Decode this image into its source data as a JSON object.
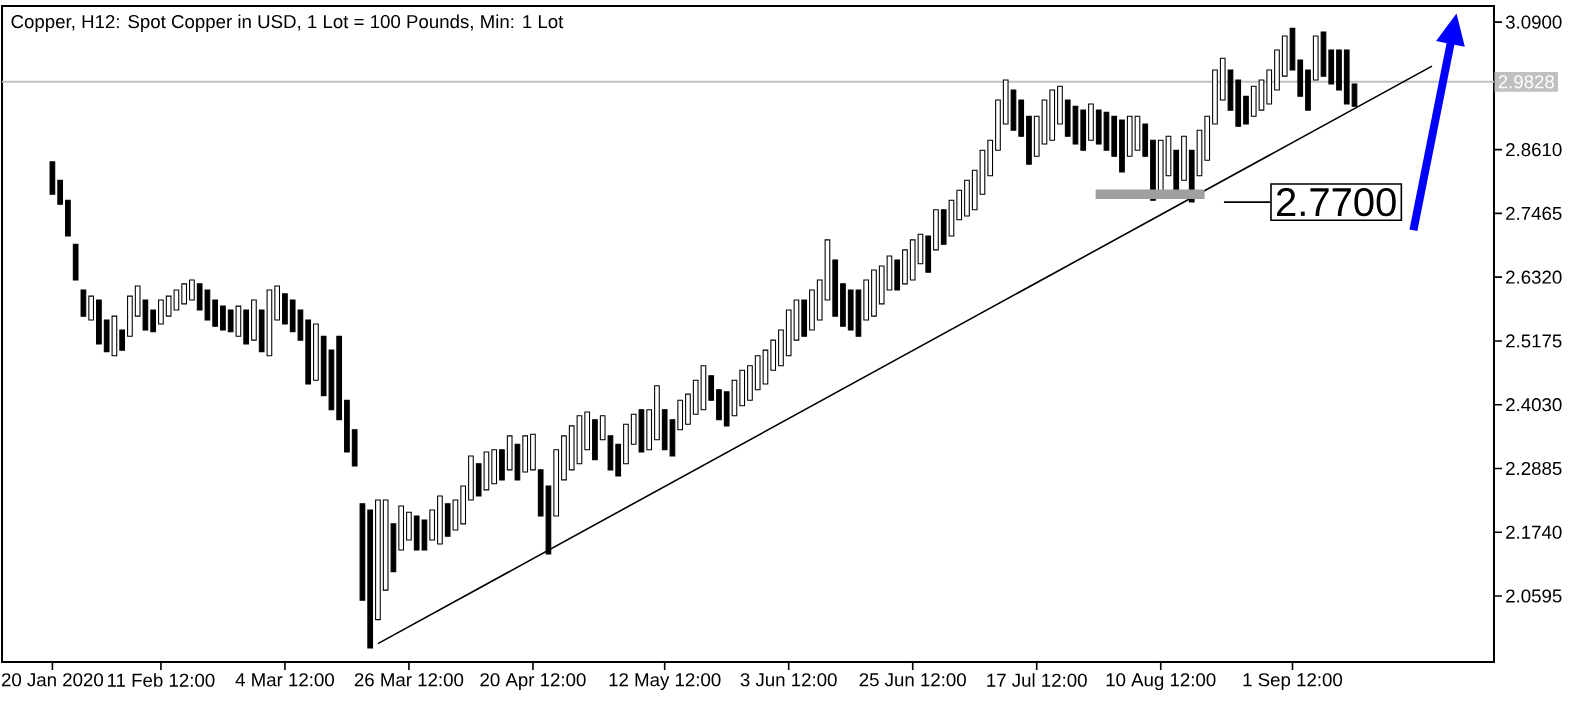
{
  "chart_data": {
    "type": "candlestick",
    "title": "Copper, H12:  Spot Copper in USD, 1 Lot = 100 Pounds, Min: 1 Lot",
    "color": "#000000",
    "categories": [
      "20 Jan 2020",
      null,
      null,
      null,
      null,
      null,
      null,
      null,
      null,
      null,
      null,
      null,
      null,
      null,
      "11 Feb 12:00",
      null,
      null,
      null,
      null,
      null,
      null,
      null,
      null,
      null,
      null,
      null,
      null,
      null,
      null,
      null,
      "4 Mar 12:00",
      null,
      null,
      null,
      null,
      null,
      null,
      null,
      null,
      null,
      null,
      null,
      null,
      null,
      null,
      null,
      "26 Mar 12:00",
      null,
      null,
      null,
      null,
      null,
      null,
      null,
      null,
      null,
      null,
      null,
      null,
      null,
      null,
      null,
      "20 Apr 12:00",
      null,
      null,
      null,
      null,
      null,
      null,
      null,
      null,
      null,
      null,
      null,
      null,
      null,
      null,
      null,
      null,
      "12 May 12:00",
      null,
      null,
      null,
      null,
      null,
      null,
      null,
      null,
      null,
      null,
      null,
      null,
      null,
      null,
      null,
      "3 Jun 12:00",
      null,
      null,
      null,
      null,
      null,
      null,
      null,
      null,
      null,
      null,
      null,
      null,
      null,
      null,
      null,
      "25 Jun 12:00",
      null,
      null,
      null,
      null,
      null,
      null,
      null,
      null,
      null,
      null,
      null,
      null,
      null,
      null,
      null,
      "17 Jul 12:00",
      null,
      null,
      null,
      null,
      null,
      null,
      null,
      null,
      null,
      null,
      null,
      null,
      null,
      null,
      null,
      "10 Aug 12:00",
      null,
      null,
      null,
      null,
      null,
      null,
      null,
      null,
      null,
      null,
      null,
      null,
      null,
      null,
      null,
      null,
      "1 Sep 12:00",
      null,
      null,
      null,
      null,
      null,
      null,
      null,
      null,
      null,
      null,
      null,
      null,
      null,
      null,
      null,
      null,
      null,
      null
    ],
    "ohlc": [
      [
        2.839,
        2.839,
        2.781,
        2.781
      ],
      [
        2.806,
        2.806,
        2.763,
        2.763
      ],
      [
        2.77,
        2.77,
        2.706,
        2.706
      ],
      [
        2.691,
        2.691,
        2.627,
        2.627
      ],
      [
        2.609,
        2.609,
        2.562,
        2.562
      ],
      [
        2.555,
        2.598,
        2.555,
        2.598
      ],
      [
        2.591,
        2.591,
        2.512,
        2.512
      ],
      [
        2.555,
        2.555,
        2.498,
        2.498
      ],
      [
        2.491,
        2.562,
        2.491,
        2.562
      ],
      [
        2.537,
        2.537,
        2.501,
        2.501
      ],
      [
        2.526,
        2.598,
        2.526,
        2.598
      ],
      [
        2.562,
        2.616,
        2.562,
        2.616
      ],
      [
        2.591,
        2.591,
        2.537,
        2.537
      ],
      [
        2.573,
        2.573,
        2.534,
        2.534
      ],
      [
        2.548,
        2.591,
        2.548,
        2.591
      ],
      [
        2.562,
        2.598,
        2.562,
        2.598
      ],
      [
        2.573,
        2.609,
        2.573,
        2.609
      ],
      [
        2.584,
        2.62,
        2.584,
        2.62
      ],
      [
        2.591,
        2.627,
        2.591,
        2.627
      ],
      [
        2.62,
        2.62,
        2.573,
        2.573
      ],
      [
        2.609,
        2.609,
        2.555,
        2.555
      ],
      [
        2.591,
        2.591,
        2.544,
        2.544
      ],
      [
        2.58,
        2.58,
        2.537,
        2.537
      ],
      [
        2.573,
        2.573,
        2.534,
        2.534
      ],
      [
        2.526,
        2.58,
        2.526,
        2.58
      ],
      [
        2.573,
        2.573,
        2.512,
        2.512
      ],
      [
        2.519,
        2.591,
        2.519,
        2.591
      ],
      [
        2.573,
        2.573,
        2.498,
        2.498
      ],
      [
        2.491,
        2.609,
        2.491,
        2.609
      ],
      [
        2.555,
        2.616,
        2.555,
        2.616
      ],
      [
        2.602,
        2.602,
        2.548,
        2.548
      ],
      [
        2.591,
        2.591,
        2.534,
        2.534
      ],
      [
        2.573,
        2.573,
        2.519,
        2.519
      ],
      [
        2.555,
        2.555,
        2.44,
        2.44
      ],
      [
        2.447,
        2.548,
        2.447,
        2.548
      ],
      [
        2.526,
        2.526,
        2.419,
        2.419
      ],
      [
        2.501,
        2.501,
        2.394,
        2.394
      ],
      [
        2.526,
        2.526,
        2.376,
        2.376
      ],
      [
        2.411,
        2.411,
        2.318,
        2.318
      ],
      [
        2.358,
        2.358,
        2.293,
        2.293
      ],
      [
        2.225,
        2.225,
        2.052,
        2.052
      ],
      [
        2.214,
        2.214,
        1.966,
        1.966
      ],
      [
        2.017,
        2.232,
        2.017,
        2.232
      ],
      [
        2.07,
        2.232,
        2.07,
        2.232
      ],
      [
        2.189,
        2.189,
        2.103,
        2.103
      ],
      [
        2.142,
        2.221,
        2.142,
        2.221
      ],
      [
        2.16,
        2.21,
        2.16,
        2.21
      ],
      [
        2.203,
        2.203,
        2.142,
        2.142
      ],
      [
        2.196,
        2.196,
        2.142,
        2.142
      ],
      [
        2.16,
        2.214,
        2.16,
        2.214
      ],
      [
        2.153,
        2.239,
        2.153,
        2.239
      ],
      [
        2.225,
        2.225,
        2.167,
        2.167
      ],
      [
        2.178,
        2.232,
        2.178,
        2.232
      ],
      [
        2.189,
        2.257,
        2.189,
        2.257
      ],
      [
        2.232,
        2.311,
        2.232,
        2.311
      ],
      [
        2.297,
        2.297,
        2.239,
        2.239
      ],
      [
        2.25,
        2.318,
        2.25,
        2.318
      ],
      [
        2.261,
        2.322,
        2.261,
        2.322
      ],
      [
        2.322,
        2.322,
        2.268,
        2.268
      ],
      [
        2.286,
        2.347,
        2.286,
        2.347
      ],
      [
        2.332,
        2.332,
        2.268,
        2.268
      ],
      [
        2.282,
        2.347,
        2.282,
        2.347
      ],
      [
        2.286,
        2.35,
        2.286,
        2.35
      ],
      [
        2.286,
        2.286,
        2.203,
        2.203
      ],
      [
        2.257,
        2.257,
        2.135,
        2.135
      ],
      [
        2.203,
        2.322,
        2.203,
        2.322
      ],
      [
        2.268,
        2.347,
        2.268,
        2.347
      ],
      [
        2.286,
        2.365,
        2.286,
        2.365
      ],
      [
        2.297,
        2.383,
        2.297,
        2.383
      ],
      [
        2.322,
        2.39,
        2.322,
        2.39
      ],
      [
        2.376,
        2.376,
        2.304,
        2.304
      ],
      [
        2.34,
        2.383,
        2.34,
        2.383
      ],
      [
        2.347,
        2.347,
        2.286,
        2.286
      ],
      [
        2.332,
        2.332,
        2.275,
        2.275
      ],
      [
        2.297,
        2.368,
        2.297,
        2.368
      ],
      [
        2.332,
        2.386,
        2.332,
        2.386
      ],
      [
        2.394,
        2.394,
        2.318,
        2.318
      ],
      [
        2.322,
        2.394,
        2.322,
        2.394
      ],
      [
        2.34,
        2.437,
        2.34,
        2.437
      ],
      [
        2.394,
        2.394,
        2.322,
        2.322
      ],
      [
        2.376,
        2.376,
        2.311,
        2.311
      ],
      [
        2.358,
        2.411,
        2.358,
        2.411
      ],
      [
        2.368,
        2.422,
        2.368,
        2.422
      ],
      [
        2.386,
        2.447,
        2.386,
        2.447
      ],
      [
        2.394,
        2.473,
        2.394,
        2.473
      ],
      [
        2.455,
        2.455,
        2.411,
        2.411
      ],
      [
        2.43,
        2.43,
        2.376,
        2.376
      ],
      [
        2.426,
        2.426,
        2.365,
        2.365
      ],
      [
        2.383,
        2.447,
        2.383,
        2.447
      ],
      [
        2.401,
        2.465,
        2.401,
        2.465
      ],
      [
        2.411,
        2.473,
        2.411,
        2.473
      ],
      [
        2.43,
        2.491,
        2.43,
        2.491
      ],
      [
        2.44,
        2.501,
        2.44,
        2.501
      ],
      [
        2.465,
        2.519,
        2.465,
        2.519
      ],
      [
        2.473,
        2.537,
        2.473,
        2.537
      ],
      [
        2.491,
        2.573,
        2.491,
        2.573
      ],
      [
        2.519,
        2.591,
        2.519,
        2.591
      ],
      [
        2.591,
        2.591,
        2.526,
        2.526
      ],
      [
        2.537,
        2.609,
        2.537,
        2.609
      ],
      [
        2.555,
        2.627,
        2.555,
        2.627
      ],
      [
        2.591,
        2.699,
        2.591,
        2.699
      ],
      [
        2.663,
        2.663,
        2.562,
        2.562
      ],
      [
        2.62,
        2.62,
        2.544,
        2.544
      ],
      [
        2.609,
        2.609,
        2.537,
        2.537
      ],
      [
        2.609,
        2.609,
        2.526,
        2.526
      ],
      [
        2.555,
        2.627,
        2.555,
        2.627
      ],
      [
        2.562,
        2.645,
        2.562,
        2.645
      ],
      [
        2.584,
        2.652,
        2.584,
        2.652
      ],
      [
        2.609,
        2.67,
        2.609,
        2.67
      ],
      [
        2.663,
        2.663,
        2.609,
        2.609
      ],
      [
        2.62,
        2.681,
        2.62,
        2.681
      ],
      [
        2.627,
        2.699,
        2.627,
        2.699
      ],
      [
        2.656,
        2.709,
        2.656,
        2.709
      ],
      [
        2.706,
        2.706,
        2.641,
        2.641
      ],
      [
        2.681,
        2.753,
        2.681,
        2.753
      ],
      [
        2.753,
        2.753,
        2.691,
        2.691
      ],
      [
        2.706,
        2.77,
        2.706,
        2.77
      ],
      [
        2.735,
        2.788,
        2.735,
        2.788
      ],
      [
        2.742,
        2.806,
        2.742,
        2.806
      ],
      [
        2.753,
        2.824,
        2.753,
        2.824
      ],
      [
        2.781,
        2.86,
        2.781,
        2.86
      ],
      [
        2.814,
        2.878,
        2.814,
        2.878
      ],
      [
        2.86,
        2.95,
        2.86,
        2.95
      ],
      [
        2.907,
        2.986,
        2.907,
        2.986
      ],
      [
        2.968,
        2.968,
        2.896,
        2.896
      ],
      [
        2.95,
        2.95,
        2.885,
        2.885
      ],
      [
        2.921,
        2.921,
        2.835,
        2.835
      ],
      [
        2.849,
        2.921,
        2.849,
        2.921
      ],
      [
        2.871,
        2.95,
        2.871,
        2.95
      ],
      [
        2.878,
        2.968,
        2.878,
        2.968
      ],
      [
        2.907,
        2.975,
        2.907,
        2.975
      ],
      [
        2.95,
        2.95,
        2.885,
        2.885
      ],
      [
        2.939,
        2.939,
        2.871,
        2.871
      ],
      [
        2.932,
        2.932,
        2.86,
        2.86
      ],
      [
        2.878,
        2.943,
        2.878,
        2.943
      ],
      [
        2.932,
        2.932,
        2.871,
        2.871
      ],
      [
        2.928,
        2.928,
        2.86,
        2.86
      ],
      [
        2.921,
        2.921,
        2.849,
        2.849
      ],
      [
        2.914,
        2.914,
        2.821,
        2.821
      ],
      [
        2.849,
        2.921,
        2.849,
        2.921
      ],
      [
        2.86,
        2.921,
        2.86,
        2.921
      ],
      [
        2.907,
        2.907,
        2.849,
        2.849
      ],
      [
        2.878,
        2.878,
        2.77,
        2.77
      ],
      [
        2.774,
        2.878,
        2.774,
        2.878
      ],
      [
        2.814,
        2.885,
        2.814,
        2.885
      ],
      [
        2.86,
        2.86,
        2.788,
        2.788
      ],
      [
        2.806,
        2.885,
        2.806,
        2.885
      ],
      [
        2.86,
        2.86,
        2.767,
        2.767
      ],
      [
        2.814,
        2.896,
        2.814,
        2.896
      ],
      [
        2.842,
        2.921,
        2.842,
        2.921
      ],
      [
        2.907,
        3.004,
        2.907,
        3.004
      ],
      [
        2.95,
        3.025,
        2.95,
        3.025
      ],
      [
        3.004,
        3.004,
        2.932,
        2.932
      ],
      [
        2.986,
        2.986,
        2.903,
        2.903
      ],
      [
        2.957,
        2.957,
        2.907,
        2.907
      ],
      [
        2.921,
        2.975,
        2.921,
        2.975
      ],
      [
        2.932,
        2.986,
        2.932,
        2.986
      ],
      [
        2.943,
        3.004,
        2.943,
        3.004
      ],
      [
        2.968,
        3.04,
        2.968,
        3.04
      ],
      [
        2.993,
        3.065,
        2.993,
        3.065
      ],
      [
        3.079,
        3.079,
        3.004,
        3.004
      ],
      [
        3.022,
        3.022,
        2.957,
        2.957
      ],
      [
        3.004,
        3.004,
        2.932,
        2.932
      ],
      [
        2.986,
        3.065,
        2.986,
        3.065
      ],
      [
        3.072,
        3.072,
        2.993,
        2.993
      ],
      [
        3.04,
        3.04,
        2.979,
        2.979
      ],
      [
        3.04,
        3.04,
        2.968,
        2.968
      ],
      [
        3.04,
        3.04,
        2.943,
        2.943
      ],
      [
        2.979,
        2.979,
        2.939,
        2.939
      ],
      null,
      null,
      null,
      null,
      null,
      null,
      null,
      null,
      null,
      null
    ],
    "series": [
      {
        "type": "line",
        "values": [
          null,
          null,
          null,
          null,
          null,
          null,
          null,
          null,
          null,
          null,
          null,
          null,
          null,
          null,
          null,
          null,
          null,
          null,
          null,
          null,
          null,
          null,
          null,
          null,
          null,
          null,
          null,
          null,
          null,
          null,
          null,
          null,
          null,
          null,
          null,
          null,
          null,
          null,
          null,
          null,
          null,
          null,
          1.974,
          null,
          null,
          null,
          null,
          null,
          null,
          null,
          null,
          null,
          null,
          null,
          null,
          null,
          null,
          null,
          null,
          null,
          null,
          null,
          null,
          null,
          null,
          null,
          null,
          null,
          null,
          null,
          null,
          null,
          null,
          null,
          null,
          null,
          null,
          null,
          null,
          null,
          null,
          null,
          null,
          null,
          null,
          null,
          null,
          null,
          null,
          null,
          null,
          null,
          null,
          null,
          null,
          null,
          null,
          null,
          null,
          null,
          null,
          null,
          null,
          null,
          null,
          null,
          null,
          null,
          null,
          null,
          null,
          null,
          null,
          null,
          null,
          null,
          null,
          null,
          null,
          null,
          null,
          null,
          null,
          null,
          null,
          null,
          null,
          null,
          null,
          null,
          null,
          null,
          null,
          null,
          null,
          null,
          null,
          null,
          null,
          null,
          null,
          null,
          null,
          null,
          null,
          null,
          null,
          null,
          null,
          null,
          null,
          null,
          null,
          null,
          null,
          null,
          null,
          null,
          null,
          null,
          null,
          null,
          null,
          null,
          null,
          null,
          null,
          null,
          null,
          null,
          null,
          null,
          null,
          null,
          null,
          null,
          null,
          null,
          3.011
        ],
        "color": "#000000"
      }
    ],
    "ylim": [
      1.941,
      3.119
    ],
    "yticks": [
      {
        "value": 2.0595,
        "label": "2.0595"
      },
      {
        "value": 2.174,
        "label": "2.1740"
      },
      {
        "value": 2.2885,
        "label": "2.2885"
      },
      {
        "value": 2.403,
        "label": "2.4030"
      },
      {
        "value": 2.5175,
        "label": "2.5175"
      },
      {
        "value": 2.632,
        "label": "2.6320"
      },
      {
        "value": 2.7465,
        "label": "2.7465"
      },
      {
        "value": 2.861,
        "label": "2.8610"
      },
      {
        "value": 3.09,
        "label": "3.0900"
      }
    ],
    "ref_lines": [
      {
        "axis": "y",
        "value": 2.9828,
        "label": "2.9828",
        "color": "#c0c0c0"
      }
    ],
    "annotations": [
      "2.7700"
    ]
  }
}
